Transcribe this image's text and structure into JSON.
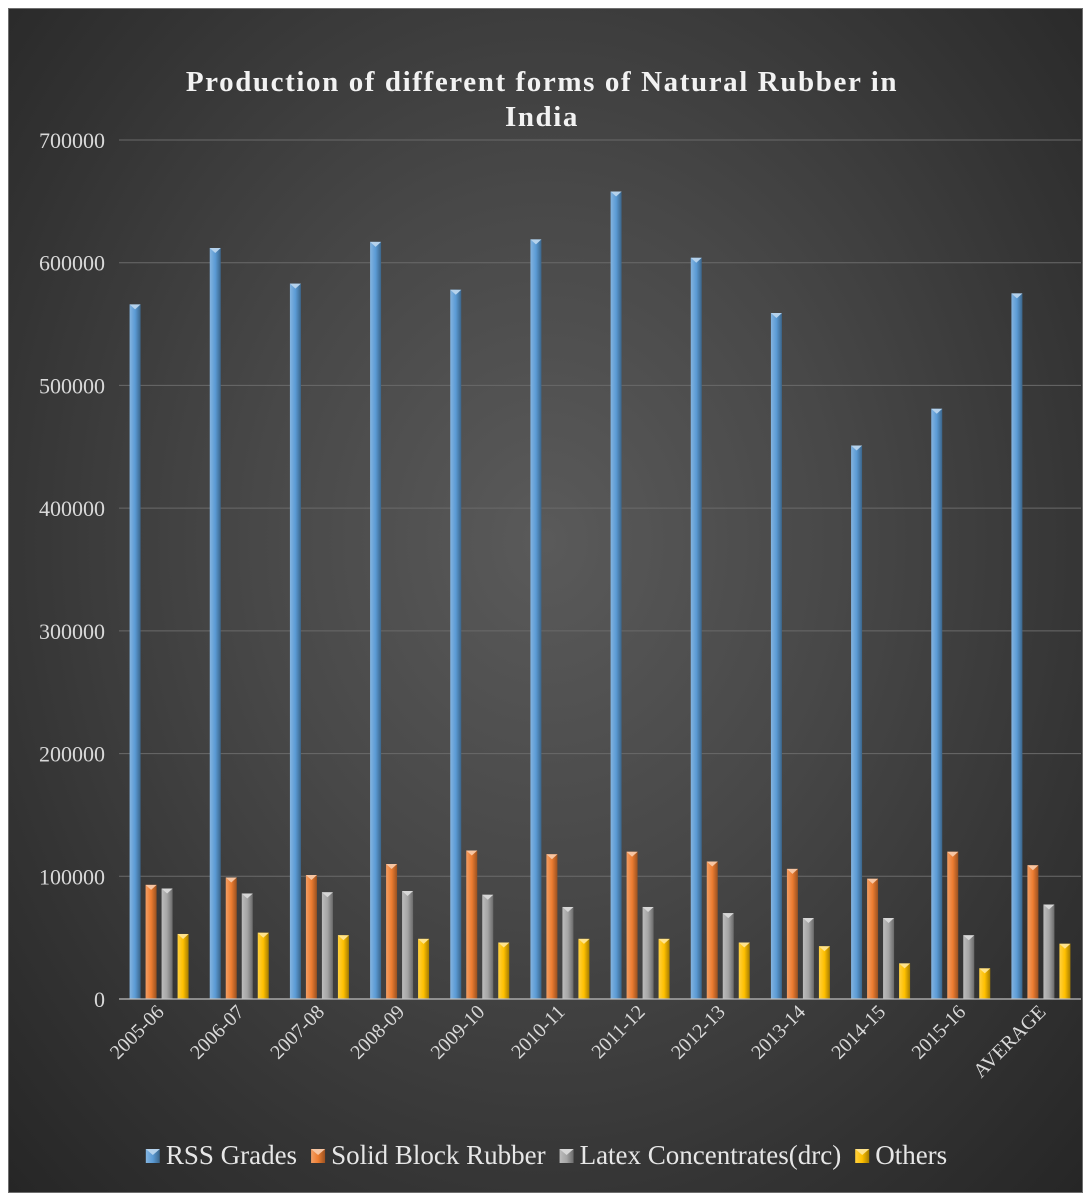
{
  "chart_data": {
    "type": "bar",
    "title": "Production of different forms of Natural Rubber in India",
    "title_lines": [
      "Production of different forms of Natural Rubber in",
      "India"
    ],
    "xlabel": "",
    "ylabel": "",
    "ylim": [
      0,
      700000
    ],
    "yticks": [
      0,
      100000,
      200000,
      300000,
      400000,
      500000,
      600000,
      700000
    ],
    "grid": true,
    "legend_position": "bottom",
    "categories": [
      "2005-06",
      "2006-07",
      "2007-08",
      "2008-09",
      "2009-10",
      "2010-11",
      "2011-12",
      "2012-13",
      "2013-14",
      "2014-15",
      "2015-16",
      "AVERAGE"
    ],
    "series": [
      {
        "name": "RSS Grades",
        "color": "#5b9bd5",
        "values": [
          566000,
          612000,
          583000,
          617000,
          578000,
          619000,
          658000,
          604000,
          559000,
          451000,
          481000,
          575000
        ]
      },
      {
        "name": "Solid Block Rubber",
        "color": "#ed7d31",
        "values": [
          93000,
          99000,
          101000,
          110000,
          121000,
          118000,
          120000,
          112000,
          106000,
          98000,
          120000,
          109000
        ]
      },
      {
        "name": "Latex Concentrates(drc)",
        "color": "#a5a5a5",
        "values": [
          90000,
          86000,
          87000,
          88000,
          85000,
          75000,
          75000,
          70000,
          66000,
          66000,
          52000,
          77000
        ]
      },
      {
        "name": "Others",
        "color": "#ffc000",
        "values": [
          53000,
          54000,
          52000,
          49000,
          46000,
          49000,
          49000,
          46000,
          43000,
          29000,
          25000,
          45000
        ]
      }
    ]
  }
}
